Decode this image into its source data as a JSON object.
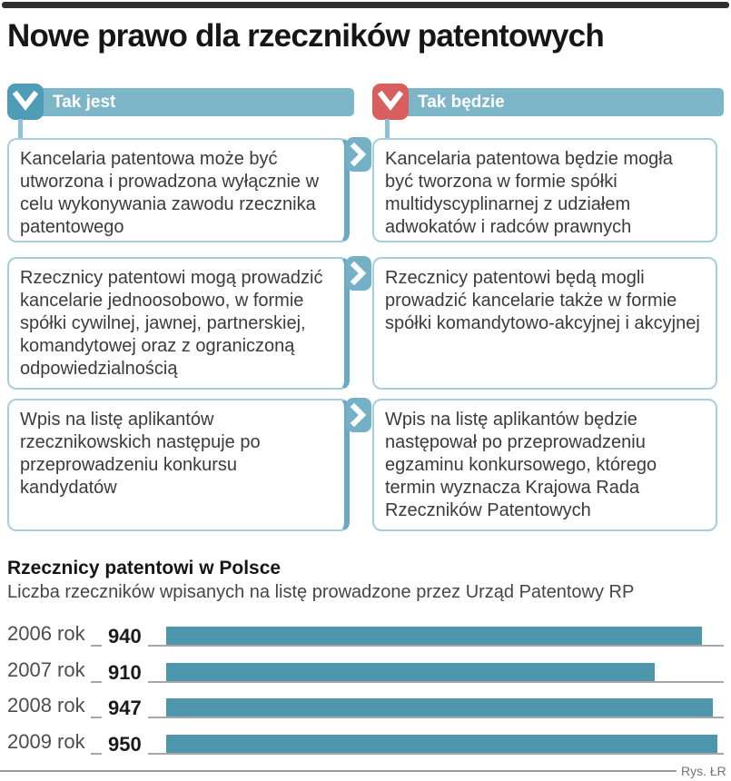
{
  "page": {
    "title": "Nowe prawo dla rzeczników patentowych",
    "credit": "Rys. ŁR"
  },
  "comparison": {
    "left_header": {
      "label": "Tak jest",
      "icon": "chevron-down",
      "icon_color": "#4f9cb6"
    },
    "right_header": {
      "label": "Tak będzie",
      "icon": "chevron-down",
      "icon_color": "#d95f5f"
    },
    "row_connector_icon": "chevron-right",
    "rows": [
      {
        "now": "Kancelaria patentowa może być utworzona i prowadzona wyłącznie w celu wykonywania zawodu rzecznika patentowego",
        "future": "Kancelaria patentowa będzie mogła być tworzona w formie spółki multidyscyplinarnej z udziałem adwokatów i radców prawnych"
      },
      {
        "now": "Rzecznicy patentowi mogą prowadzić kancelarie jednoosobowo, w formie spółki cywilnej, jawnej, partnerskiej, komandytowej oraz z ograniczoną odpowiedzialnością",
        "future": "Rzecznicy patentowi będą mogli prowadzić kancelarie także w formie spółki komandytowo-akcyjnej i akcyjnej"
      },
      {
        "now": "Wpis na listę aplikantów rzecznikowskich następuje po przeprowadzeniu konkursu kandydatów",
        "future": "Wpis na listę aplikantów będzie następował po przeprowadzeniu egzaminu konkursowego, którego termin wyznacza Krajowa Rada Rzeczników Patentowych"
      }
    ]
  },
  "chart": {
    "title": "Rzecznicy patentowi w Polsce",
    "subtitle": "Liczba rzeczników wpisanych na listę prowadzone przez Urząd Patentowy RP"
  },
  "chart_data": {
    "type": "bar",
    "orientation": "horizontal",
    "title": "Rzecznicy patentowi w Polsce",
    "subtitle": "Liczba rzeczników wpisanych na listę prowadzone przez Urząd Patentowy RP",
    "categories": [
      "2006 rok",
      "2007 rok",
      "2008 rok",
      "2009 rok"
    ],
    "values": [
      940,
      910,
      947,
      950
    ],
    "xlabel": "",
    "ylabel": "",
    "xlim": [
      600,
      950
    ],
    "grid": false,
    "legend": false,
    "bar_color": "#4e96ac"
  },
  "colors": {
    "ink": "#161616",
    "header_teal": "#7db6c9",
    "icon_teal": "#4f9cb6",
    "icon_red": "#d95f5f",
    "box_border": "#a6cede",
    "box_tab": "#68aac2",
    "badge_teal": "#74b1c6",
    "connector": "#8fc2d4",
    "bar_teal": "#4e96ac",
    "baseline_gray": "#a7a7a7",
    "text_gray": "#3b3b3b"
  }
}
